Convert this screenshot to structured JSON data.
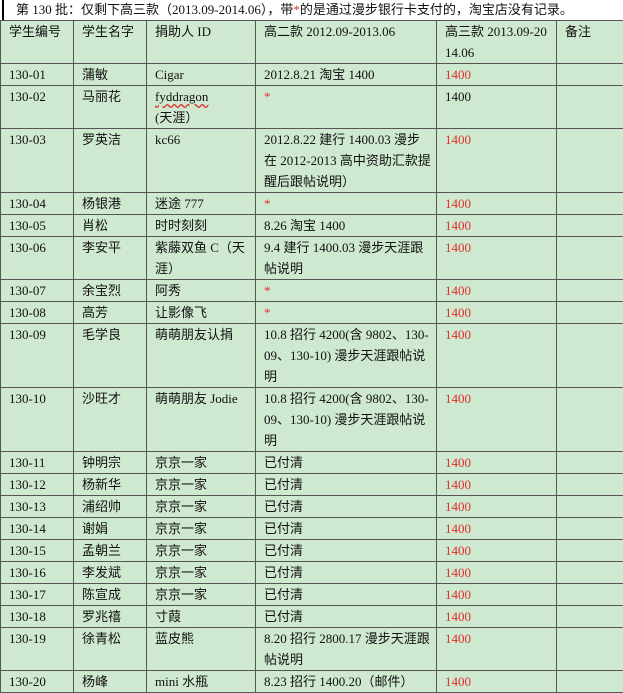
{
  "title": {
    "before": "第 130 批：仅剩下高三款（2013.09-2014.06），带",
    "star": "*",
    "after": "的是通过漫步银行卡支付的，淘宝店没有记录。"
  },
  "colors": {
    "background": "#cfe8d0",
    "highlight": "#e0302c"
  },
  "headers": [
    "学生编号",
    "学生名字",
    "捐助人 ID",
    "高二款 2012.09-2013.06",
    "高三款 2013.09-2014.06",
    "备注"
  ],
  "rows": [
    {
      "id": "130-01",
      "name": "蒲敏",
      "donor": "Cigar",
      "g2": "2012.8.21 淘宝 1400",
      "g3": "1400",
      "g3_red": true,
      "note": ""
    },
    {
      "id": "130-02",
      "name": "马丽花",
      "donor": "fyddragon(天涯）",
      "g2": "*",
      "g3": "1400",
      "g3_red": false,
      "note": ""
    },
    {
      "id": "130-03",
      "name": "罗英洁",
      "donor": "kc66",
      "g2": "2012.8.22 建行 1400.03 漫步在 2012-2013 高中资助汇款提醒后跟帖说明）",
      "g3": "1400",
      "g3_red": true,
      "note": ""
    },
    {
      "id": "130-04",
      "name": "杨银港",
      "donor": "迷途 777",
      "g2": "*",
      "g3": "1400",
      "g3_red": true,
      "note": ""
    },
    {
      "id": "130-05",
      "name": "肖松",
      "donor": "时时刻刻",
      "g2": "8.26 淘宝 1400",
      "g3": "1400",
      "g3_red": true,
      "note": ""
    },
    {
      "id": "130-06",
      "name": "李安平",
      "donor": "紫藤双鱼 C（天涯）",
      "g2": "9.4 建行 1400.03 漫步天涯跟帖说明",
      "g3": "1400",
      "g3_red": true,
      "note": ""
    },
    {
      "id": "130-07",
      "name": "余宝烈",
      "donor": "阿秀",
      "g2": "*",
      "g3": "1400",
      "g3_red": true,
      "note": ""
    },
    {
      "id": "130-08",
      "name": "高芳",
      "donor": "让影像飞",
      "g2": "*",
      "g3": "1400",
      "g3_red": true,
      "note": ""
    },
    {
      "id": "130-09",
      "name": "毛学良",
      "donor": "萌萌朋友认捐",
      "g2": "10.8 招行 4200(含 9802、130-09、130-10) 漫步天涯跟帖说明",
      "g3": "1400",
      "g3_red": true,
      "note": ""
    },
    {
      "id": "130-10",
      "name": "沙旺才",
      "donor": "萌萌朋友 Jodie",
      "g2": "10.8 招行 4200(含 9802、130-09、130-10) 漫步天涯跟帖说明",
      "g3": "1400",
      "g3_red": true,
      "note": ""
    },
    {
      "id": "130-11",
      "name": "钟明宗",
      "donor": "京京一家",
      "g2": "已付清",
      "g3": "1400",
      "g3_red": true,
      "note": ""
    },
    {
      "id": "130-12",
      "name": "杨新华",
      "donor": "京京一家",
      "g2": "已付清",
      "g3": "1400",
      "g3_red": true,
      "note": ""
    },
    {
      "id": "130-13",
      "name": "浦绍帅",
      "donor": "京京一家",
      "g2": "已付清",
      "g3": "1400",
      "g3_red": true,
      "note": ""
    },
    {
      "id": "130-14",
      "name": "谢娟",
      "donor": "京京一家",
      "g2": "已付清",
      "g3": "1400",
      "g3_red": true,
      "note": ""
    },
    {
      "id": "130-15",
      "name": "孟朝兰",
      "donor": "京京一家",
      "g2": "已付清",
      "g3": "1400",
      "g3_red": true,
      "note": ""
    },
    {
      "id": "130-16",
      "name": "李发斌",
      "donor": "京京一家",
      "g2": "已付清",
      "g3": "1400",
      "g3_red": true,
      "note": ""
    },
    {
      "id": "130-17",
      "name": "陈宣成",
      "donor": "京京一家",
      "g2": "已付清",
      "g3": "1400",
      "g3_red": true,
      "note": ""
    },
    {
      "id": "130-18",
      "name": "罗兆禧",
      "donor": "寸葭",
      "g2": "已付清",
      "g3": "1400",
      "g3_red": true,
      "note": ""
    },
    {
      "id": "130-19",
      "name": "徐青松",
      "donor": "蓝皮熊",
      "g2": "8.20 招行 2800.17 漫步天涯跟帖说明",
      "g3": "1400",
      "g3_red": true,
      "note": ""
    },
    {
      "id": "130-20",
      "name": "杨峰",
      "donor": "mini 水瓶",
      "g2": "8.23 招行 1400.20（邮件）",
      "g3": "1400",
      "g3_red": true,
      "note": ""
    }
  ]
}
